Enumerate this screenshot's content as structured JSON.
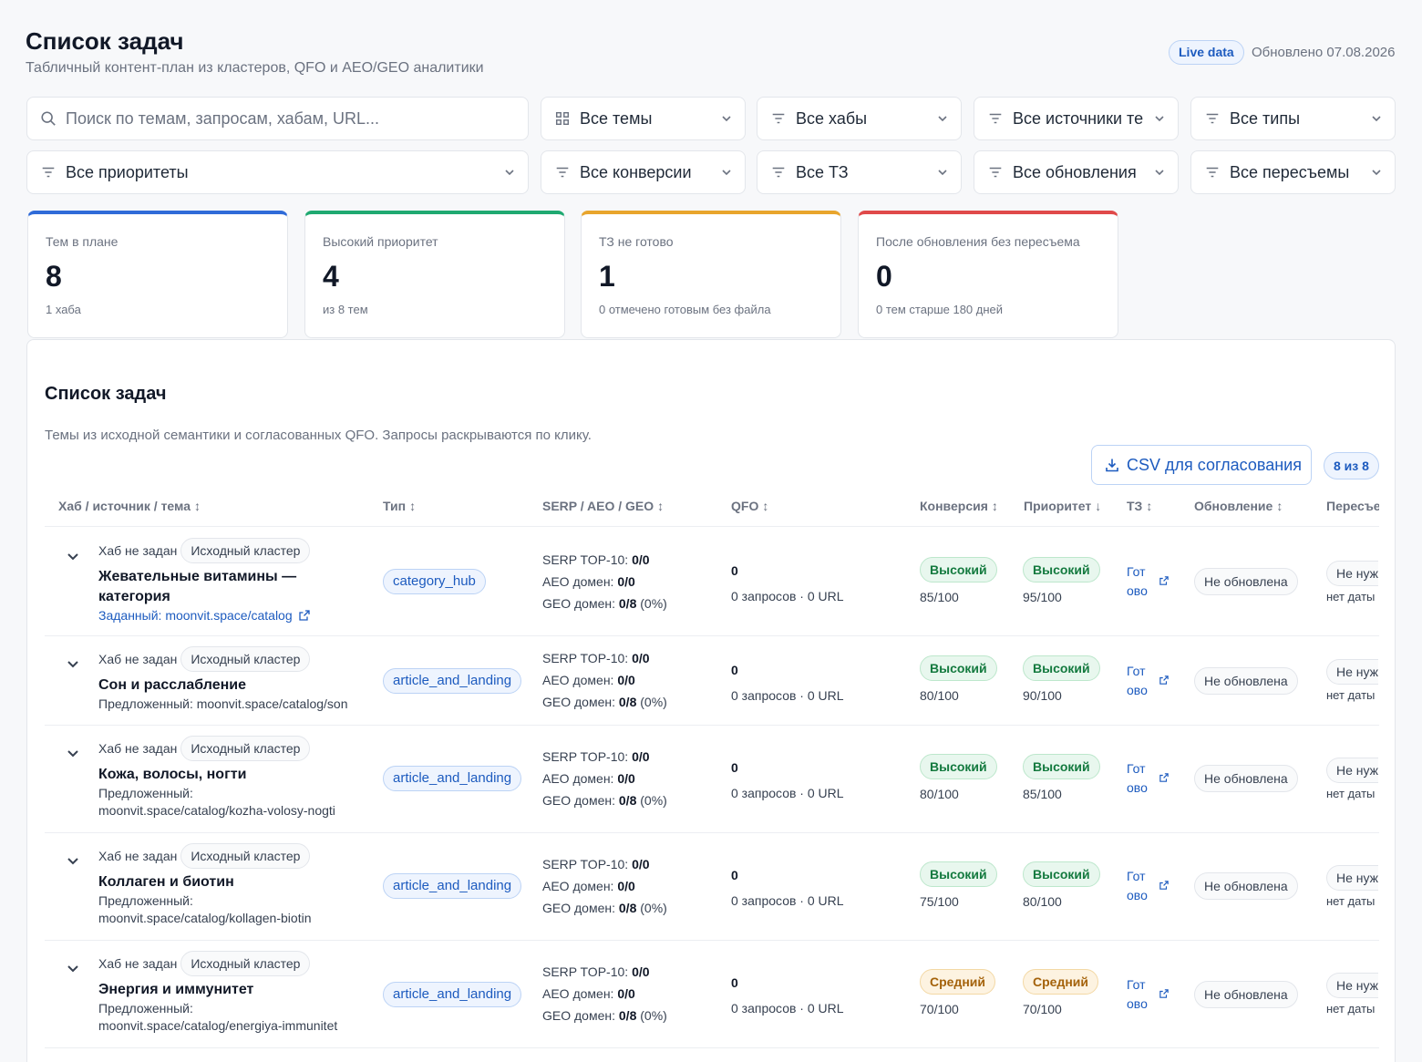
{
  "header": {
    "title": "Список задач",
    "subtitle": "Табличный контент-план из кластеров, QFO и AEO/GEO аналитики",
    "live_badge": "Live data",
    "updated": "Обновлено 07.08.2026"
  },
  "filters": {
    "search_placeholder": "Поиск по темам, запросам, хабам, URL...",
    "themes": "Все темы",
    "hubs": "Все хабы",
    "sources": "Все источники те",
    "types": "Все типы",
    "priorities": "Все приоритеты",
    "conversions": "Все конверсии",
    "tz": "Все ТЗ",
    "updates": "Все обновления",
    "reshoots": "Все пересъемы"
  },
  "stats": [
    {
      "label": "Тем в плане",
      "value": "8",
      "note": "1 хаба",
      "color": "#2f6bd8"
    },
    {
      "label": "Высокий приоритет",
      "value": "4",
      "note": "из 8 тем",
      "color": "#1fa971"
    },
    {
      "label": "ТЗ не готово",
      "value": "1",
      "note": "0 отмечено готовым без файла",
      "color": "#e8a52d"
    },
    {
      "label": "После обновления без пересъема",
      "value": "0",
      "note": "0 тем старше 180 дней",
      "color": "#e04a4a"
    }
  ],
  "panel": {
    "title": "Список задач",
    "description": "Темы из исходной семантики и согласованных QFO. Запросы раскрываются по клику.",
    "csv_button": "CSV для согласования",
    "count_badge": "8 из 8"
  },
  "columns": {
    "hub": "Хаб / источник / тема",
    "type": "Тип",
    "serp": "SERP / AEO / GEO",
    "qfo": "QFO",
    "conversion": "Конверсия",
    "priority": "Приоритет",
    "tz": "ТЗ",
    "update": "Обновление",
    "reshoot": "Пересъе",
    "sort_symbol": "↕",
    "sort_active_symbol": "↓"
  },
  "rows": [
    {
      "hub": "Хаб не задан",
      "source": "Исходный кластер",
      "topic_line1": "Жевательные витамины —",
      "topic_line2": "категория",
      "url_line1": "Заданный: moonvit.space/catalog",
      "url_line2": "",
      "type": "category_hub",
      "serp_label": "SERP TOP-10:",
      "serp_val": "0/0",
      "aeo_label": "AEO домен:",
      "aeo_val": "0/0",
      "geo_label": "GEO домен:",
      "geo_val": "0/8",
      "geo_pct": "(0%)",
      "qfo": "0",
      "qfo_sub": "0 запросов · 0 URL",
      "conv": "Высокий",
      "conv_score": "85/100",
      "prio": "Высокий",
      "prio_score": "95/100",
      "tz_line1": "Гот",
      "tz_line2": "ово",
      "update": "Не обновлена",
      "reshoot": "Не нуж",
      "reshoot_date": "нет даты"
    },
    {
      "hub": "Хаб не задан",
      "source": "Исходный кластер",
      "topic_line1": "Сон и расслабление",
      "topic_line2": "",
      "url_line1": "Предложенный: moonvit.space/catalog/son",
      "url_line2": "",
      "type": "article_and_landing",
      "serp_label": "SERP TOP-10:",
      "serp_val": "0/0",
      "aeo_label": "AEO домен:",
      "aeo_val": "0/0",
      "geo_label": "GEO домен:",
      "geo_val": "0/8",
      "geo_pct": "(0%)",
      "qfo": "0",
      "qfo_sub": "0 запросов · 0 URL",
      "conv": "Высокий",
      "conv_score": "80/100",
      "prio": "Высокий",
      "prio_score": "90/100",
      "tz_line1": "Гот",
      "tz_line2": "ово",
      "update": "Не обновлена",
      "reshoot": "Не нуж",
      "reshoot_date": "нет даты"
    },
    {
      "hub": "Хаб не задан",
      "source": "Исходный кластер",
      "topic_line1": "Кожа, волосы, ногти",
      "topic_line2": "",
      "url_line1": "Предложенный:",
      "url_line2": "moonvit.space/catalog/kozha-volosy-nogti",
      "type": "article_and_landing",
      "serp_label": "SERP TOP-10:",
      "serp_val": "0/0",
      "aeo_label": "AEO домен:",
      "aeo_val": "0/0",
      "geo_label": "GEO домен:",
      "geo_val": "0/8",
      "geo_pct": "(0%)",
      "qfo": "0",
      "qfo_sub": "0 запросов · 0 URL",
      "conv": "Высокий",
      "conv_score": "80/100",
      "prio": "Высокий",
      "prio_score": "85/100",
      "tz_line1": "Гот",
      "tz_line2": "ово",
      "update": "Не обновлена",
      "reshoot": "Не нуж",
      "reshoot_date": "нет даты"
    },
    {
      "hub": "Хаб не задан",
      "source": "Исходный кластер",
      "topic_line1": "Коллаген и биотин",
      "topic_line2": "",
      "url_line1": "Предложенный:",
      "url_line2": "moonvit.space/catalog/kollagen-biotin",
      "type": "article_and_landing",
      "serp_label": "SERP TOP-10:",
      "serp_val": "0/0",
      "aeo_label": "AEO домен:",
      "aeo_val": "0/0",
      "geo_label": "GEO домен:",
      "geo_val": "0/8",
      "geo_pct": "(0%)",
      "qfo": "0",
      "qfo_sub": "0 запросов · 0 URL",
      "conv": "Высокий",
      "conv_score": "75/100",
      "prio": "Высокий",
      "prio_score": "80/100",
      "tz_line1": "Гот",
      "tz_line2": "ово",
      "update": "Не обновлена",
      "reshoot": "Не нуж",
      "reshoot_date": "нет даты"
    },
    {
      "hub": "Хаб не задан",
      "source": "Исходный кластер",
      "topic_line1": "Энергия и иммунитет",
      "topic_line2": "",
      "url_line1": "Предложенный:",
      "url_line2": "moonvit.space/catalog/energiya-immunitet",
      "type": "article_and_landing",
      "serp_label": "SERP TOP-10:",
      "serp_val": "0/0",
      "aeo_label": "AEO домен:",
      "aeo_val": "0/0",
      "geo_label": "GEO домен:",
      "geo_val": "0/8",
      "geo_pct": "(0%)",
      "qfo": "0",
      "qfo_sub": "0 запросов · 0 URL",
      "conv": "Средний",
      "conv_score": "70/100",
      "prio": "Средний",
      "prio_score": "70/100",
      "tz_line1": "Гот",
      "tz_line2": "ово",
      "update": "Не обновлена",
      "reshoot": "Не нуж",
      "reshoot_date": "нет даты"
    }
  ]
}
